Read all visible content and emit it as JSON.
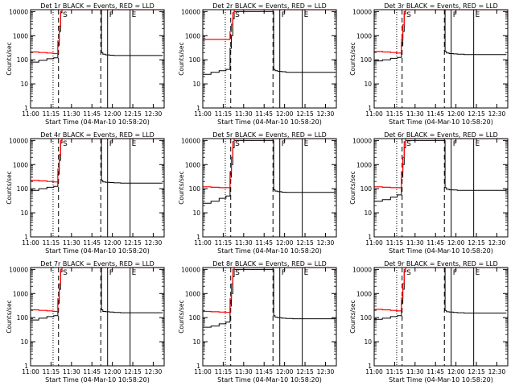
{
  "chart_data": {
    "type": "line",
    "x_ticks": [
      "11:00",
      "11:15",
      "11:30",
      "11:45",
      "12:00",
      "12:15",
      "12:30"
    ],
    "x_tick_minutes": [
      0,
      15,
      30,
      45,
      60,
      75,
      90
    ],
    "xlim_minutes": [
      0,
      98
    ],
    "y_ticks": [
      "1",
      "10",
      "100",
      "1000",
      "10000"
    ],
    "ylim": [
      1,
      12000
    ],
    "y_scale": "log",
    "ylabel": "Counts/sec",
    "xlabel": "Start Time (04-Mar-10 10:58:20)",
    "series_names": [
      "Events",
      "LLD"
    ],
    "series_colors": [
      "#000000",
      "#ff0000"
    ],
    "time_minutes": [
      0,
      5,
      6,
      11,
      12,
      16,
      17,
      20,
      21,
      22,
      23,
      25,
      27,
      30,
      32,
      35,
      38,
      41,
      44,
      47,
      51,
      52,
      53,
      55,
      58,
      61,
      66,
      72,
      78,
      85,
      90,
      97
    ],
    "markers": [
      {
        "label": "",
        "minute": 16.5,
        "style": "dotted"
      },
      {
        "label": "",
        "minute": 20.5,
        "style": "dashed"
      },
      {
        "label": "S",
        "minute": 22.5,
        "style": "none"
      },
      {
        "label": "",
        "minute": 51.5,
        "style": "dashed"
      },
      {
        "label": "F",
        "minute": 56.5,
        "style": "solid"
      },
      {
        "label": "E",
        "minute": 73.0,
        "style": "solid"
      }
    ],
    "panels": [
      {
        "title": "Det 1r BLACK = Events, RED = LLD",
        "events": [
          80,
          80,
          95,
          95,
          110,
          110,
          120,
          400,
          1500,
          9000,
          15000,
          15000,
          15000,
          15000,
          15000,
          15000,
          15000,
          15000,
          15000,
          15000,
          15000,
          200,
          170,
          160,
          155,
          150,
          150,
          150,
          150,
          150,
          150,
          150
        ],
        "lld": [
          210,
          210,
          200,
          200,
          190,
          185,
          180,
          600,
          2500,
          10000,
          15000,
          15000,
          15000,
          15000,
          15000,
          15000,
          15000,
          15000,
          15000,
          15000,
          15000,
          15000,
          15000,
          15000,
          15000,
          15000,
          15000,
          15000,
          15000,
          15000,
          15000,
          15000
        ]
      },
      {
        "title": "Det 2r BLACK = Events, RED = LLD",
        "events": [
          25,
          25,
          30,
          30,
          35,
          35,
          40,
          300,
          1000,
          5000,
          10000,
          10000,
          10000,
          10000,
          10000,
          10000,
          10000,
          10000,
          10000,
          10000,
          10000,
          40,
          35,
          33,
          32,
          30,
          30,
          30,
          30,
          30,
          30,
          30
        ],
        "lld": [
          700,
          700,
          700,
          700,
          700,
          700,
          700,
          1500,
          3000,
          9000,
          15000,
          15000,
          15000,
          15000,
          15000,
          15000,
          15000,
          15000,
          15000,
          15000,
          15000,
          15000,
          15000,
          15000,
          15000,
          15000,
          15000,
          15000,
          15000,
          15000,
          15000,
          15000
        ]
      },
      {
        "title": "Det 3r BLACK = Events, RED = LLD",
        "events": [
          90,
          90,
          100,
          100,
          115,
          115,
          125,
          400,
          1500,
          8000,
          15000,
          15000,
          15000,
          15000,
          15000,
          15000,
          15000,
          15000,
          15000,
          15000,
          15000,
          220,
          190,
          180,
          175,
          170,
          165,
          165,
          165,
          165,
          165,
          165
        ],
        "lld": [
          220,
          220,
          210,
          210,
          200,
          195,
          190,
          700,
          2800,
          10000,
          15000,
          15000,
          15000,
          15000,
          15000,
          15000,
          15000,
          15000,
          15000,
          15000,
          15000,
          15000,
          15000,
          15000,
          15000,
          15000,
          15000,
          15000,
          15000,
          15000,
          15000,
          15000
        ]
      },
      {
        "title": "Det 4r BLACK = Events, RED = LLD",
        "events": [
          85,
          85,
          100,
          100,
          115,
          115,
          125,
          400,
          1500,
          8000,
          15000,
          15000,
          15000,
          15000,
          15000,
          15000,
          15000,
          15000,
          15000,
          15000,
          15000,
          220,
          190,
          185,
          180,
          175,
          170,
          170,
          170,
          170,
          170,
          170
        ],
        "lld": [
          220,
          220,
          210,
          210,
          200,
          195,
          190,
          650,
          2600,
          10000,
          15000,
          15000,
          15000,
          15000,
          15000,
          15000,
          15000,
          15000,
          15000,
          15000,
          15000,
          15000,
          15000,
          15000,
          15000,
          15000,
          15000,
          15000,
          15000,
          15000,
          15000,
          15000
        ]
      },
      {
        "title": "Det 5r BLACK = Events, RED = LLD",
        "events": [
          25,
          25,
          30,
          30,
          40,
          40,
          50,
          300,
          1000,
          5000,
          10000,
          10000,
          10000,
          10000,
          10000,
          10000,
          10000,
          10000,
          10000,
          10000,
          10000,
          90,
          80,
          75,
          72,
          70,
          70,
          70,
          70,
          70,
          70,
          70
        ],
        "lld": [
          120,
          120,
          115,
          115,
          110,
          110,
          110,
          500,
          2000,
          9000,
          15000,
          15000,
          15000,
          15000,
          15000,
          15000,
          15000,
          15000,
          15000,
          15000,
          15000,
          15000,
          15000,
          15000,
          15000,
          15000,
          15000,
          15000,
          15000,
          15000,
          15000,
          15000
        ]
      },
      {
        "title": "Det 6r BLACK = Events, RED = LLD",
        "events": [
          30,
          30,
          35,
          35,
          45,
          45,
          55,
          300,
          1000,
          5000,
          10000,
          10000,
          10000,
          10000,
          10000,
          10000,
          10000,
          10000,
          10000,
          10000,
          10000,
          110,
          95,
          90,
          88,
          85,
          85,
          85,
          85,
          85,
          85,
          85
        ],
        "lld": [
          120,
          120,
          115,
          115,
          110,
          110,
          110,
          500,
          2000,
          9000,
          15000,
          15000,
          15000,
          15000,
          15000,
          15000,
          15000,
          15000,
          15000,
          15000,
          15000,
          15000,
          15000,
          15000,
          15000,
          15000,
          15000,
          15000,
          15000,
          15000,
          15000,
          15000
        ]
      },
      {
        "title": "Det 7r BLACK = Events, RED = LLD",
        "events": [
          80,
          80,
          95,
          95,
          110,
          110,
          120,
          400,
          1500,
          8000,
          15000,
          15000,
          15000,
          15000,
          15000,
          15000,
          15000,
          15000,
          15000,
          15000,
          15000,
          210,
          180,
          175,
          170,
          165,
          160,
          160,
          160,
          160,
          160,
          160
        ],
        "lld": [
          210,
          210,
          200,
          200,
          190,
          185,
          180,
          600,
          2500,
          10000,
          15000,
          15000,
          15000,
          15000,
          15000,
          15000,
          15000,
          15000,
          15000,
          15000,
          15000,
          15000,
          15000,
          15000,
          15000,
          15000,
          15000,
          15000,
          15000,
          15000,
          15000,
          15000
        ]
      },
      {
        "title": "Det 8r BLACK = Events, RED = LLD",
        "events": [
          40,
          40,
          45,
          45,
          55,
          55,
          65,
          300,
          1000,
          5000,
          10000,
          10000,
          10000,
          10000,
          10000,
          10000,
          10000,
          10000,
          10000,
          10000,
          10000,
          120,
          105,
          100,
          95,
          92,
          90,
          90,
          90,
          90,
          90,
          90
        ],
        "lld": [
          180,
          180,
          175,
          175,
          170,
          168,
          165,
          600,
          2500,
          10000,
          15000,
          15000,
          15000,
          15000,
          15000,
          15000,
          15000,
          15000,
          15000,
          15000,
          15000,
          15000,
          15000,
          15000,
          15000,
          15000,
          15000,
          15000,
          15000,
          15000,
          15000,
          15000
        ]
      },
      {
        "title": "Det 9r BLACK = Events, RED = LLD",
        "events": [
          85,
          85,
          95,
          95,
          110,
          110,
          120,
          400,
          1500,
          8000,
          15000,
          15000,
          15000,
          15000,
          15000,
          15000,
          15000,
          15000,
          15000,
          15000,
          15000,
          200,
          175,
          170,
          165,
          160,
          155,
          155,
          155,
          155,
          155,
          155
        ],
        "lld": [
          220,
          220,
          210,
          210,
          200,
          195,
          190,
          650,
          2600,
          10000,
          15000,
          15000,
          15000,
          15000,
          15000,
          15000,
          15000,
          15000,
          15000,
          15000,
          15000,
          15000,
          15000,
          15000,
          15000,
          15000,
          15000,
          15000,
          15000,
          15000,
          15000,
          15000
        ]
      }
    ]
  }
}
